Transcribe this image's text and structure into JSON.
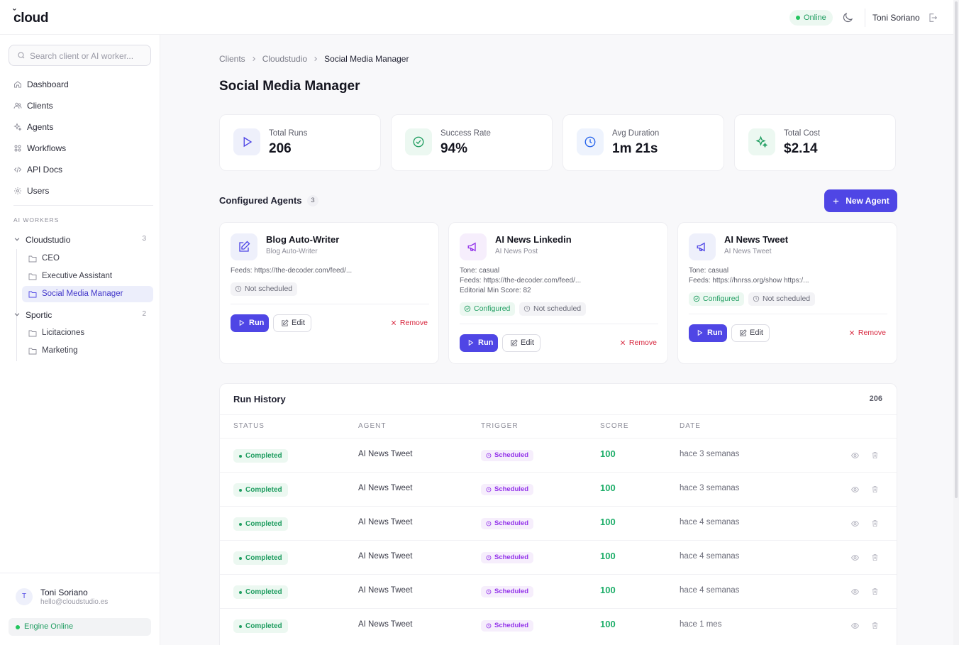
{
  "app": {
    "logo": "cloud",
    "status": "Online",
    "user": "Toni Soriano"
  },
  "sidebar": {
    "search_placeholder": "Search client or AI worker...",
    "nav": [
      {
        "label": "Dashboard",
        "icon": "home-icon"
      },
      {
        "label": "Clients",
        "icon": "users-icon"
      },
      {
        "label": "Agents",
        "icon": "sparkles-icon"
      },
      {
        "label": "Workflows",
        "icon": "grid-icon"
      },
      {
        "label": "API Docs",
        "icon": "code-icon"
      },
      {
        "label": "Users",
        "icon": "gear-icon"
      }
    ],
    "section_label": "AI WORKERS",
    "groups": [
      {
        "label": "Cloudstudio",
        "count": "3",
        "items": [
          "CEO",
          "Executive Assistant",
          "Social Media Manager"
        ]
      },
      {
        "label": "Sportic",
        "count": "2",
        "items": [
          "Licitaciones",
          "Marketing"
        ]
      }
    ],
    "active_item": "Social Media Manager",
    "footer": {
      "avatar": "T",
      "name": "Toni Soriano",
      "email": "hello@cloudstudio.es",
      "engine": "Engine Online"
    }
  },
  "breadcrumb": [
    "Clients",
    "Cloudstudio",
    "Social Media Manager"
  ],
  "page_title": "Social Media Manager",
  "stats": [
    {
      "label": "Total Runs",
      "value": "206",
      "icon": "play-icon",
      "color": "#4f46e5",
      "bg": "#eef0fb"
    },
    {
      "label": "Success Rate",
      "value": "94%",
      "icon": "check-circle-icon",
      "color": "#1f9d60",
      "bg": "#ecf8f1"
    },
    {
      "label": "Avg Duration",
      "value": "1m 21s",
      "icon": "clock-icon",
      "color": "#2563eb",
      "bg": "#eef3fd"
    },
    {
      "label": "Total Cost",
      "value": "$2.14",
      "icon": "sparkles-icon",
      "color": "#1f9d60",
      "bg": "#ecf8f1"
    }
  ],
  "agents_section": {
    "title": "Configured Agents",
    "count": "3",
    "new_button": "New Agent"
  },
  "agents": [
    {
      "name": "Blog Auto-Writer",
      "subtitle": "Blog Auto-Writer",
      "icon": "pencil-square-icon",
      "lines": [
        "Feeds: https://the-decoder.com/feed/..."
      ],
      "configured": "",
      "schedule": "Not scheduled",
      "run": "Run",
      "edit": "Edit",
      "remove": "Remove"
    },
    {
      "name": "AI News Linkedin",
      "subtitle": "AI News Post",
      "icon": "megaphone-icon",
      "lines": [
        "Tone: casual",
        "Feeds: https://the-decoder.com/feed/...",
        "Editorial Min Score: 82"
      ],
      "configured": "Configured",
      "schedule": "Not scheduled",
      "run": "Run",
      "edit": "Edit",
      "remove": "Remove"
    },
    {
      "name": "AI News Tweet",
      "subtitle": "AI News Tweet",
      "icon": "megaphone-icon",
      "lines": [
        "Tone: casual",
        "Feeds: https://hnrss.org/show https:/..."
      ],
      "configured": "Configured",
      "schedule": "Not scheduled",
      "run": "Run",
      "edit": "Edit",
      "remove": "Remove"
    }
  ],
  "history": {
    "title": "Run History",
    "count": "206",
    "columns": [
      "STATUS",
      "AGENT",
      "TRIGGER",
      "SCORE",
      "DATE"
    ],
    "rows": [
      {
        "status": "Completed",
        "agent": "AI News Tweet",
        "trigger": "Scheduled",
        "score": "100",
        "date": "hace 3 semanas"
      },
      {
        "status": "Completed",
        "agent": "AI News Tweet",
        "trigger": "Scheduled",
        "score": "100",
        "date": "hace 3 semanas"
      },
      {
        "status": "Completed",
        "agent": "AI News Tweet",
        "trigger": "Scheduled",
        "score": "100",
        "date": "hace 4 semanas"
      },
      {
        "status": "Completed",
        "agent": "AI News Tweet",
        "trigger": "Scheduled",
        "score": "100",
        "date": "hace 4 semanas"
      },
      {
        "status": "Completed",
        "agent": "AI News Tweet",
        "trigger": "Scheduled",
        "score": "100",
        "date": "hace 4 semanas"
      },
      {
        "status": "Completed",
        "agent": "AI News Tweet",
        "trigger": "Scheduled",
        "score": "100",
        "date": "hace 1 mes"
      }
    ]
  }
}
